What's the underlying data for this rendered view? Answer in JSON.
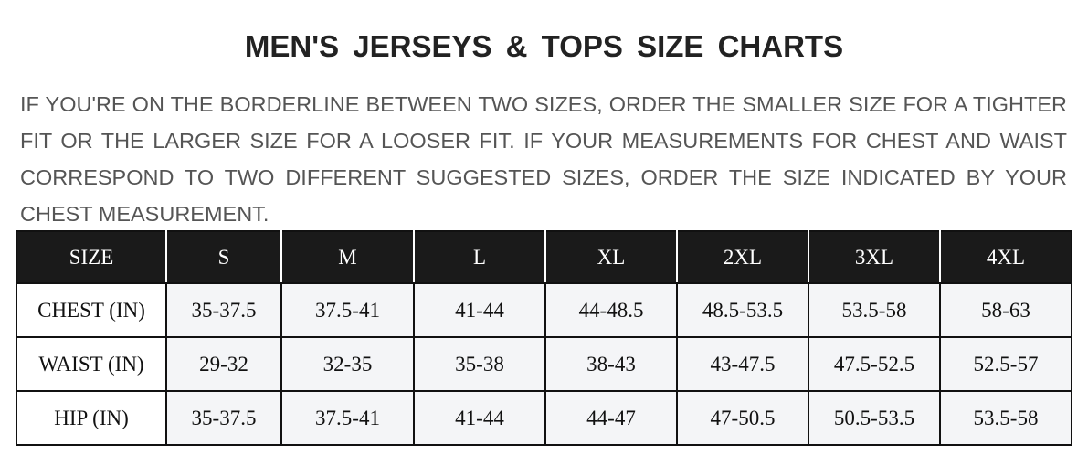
{
  "title": "MEN'S JERSEYS & TOPS SIZE CHARTS",
  "note": "IF YOU'RE ON THE BORDERLINE BETWEEN TWO SIZES, ORDER THE SMALLER SIZE FOR A TIGHTER FIT OR THE LARGER SIZE FOR A LOOSER FIT. IF YOUR MEASUREMENTS FOR CHEST AND WAIST CORRESPOND TO TWO DIFFERENT SUGGESTED SIZES, ORDER THE SIZE INDICATED BY YOUR CHEST MEASUREMENT.",
  "table": {
    "headers": [
      "SIZE",
      "S",
      "M",
      "L",
      "XL",
      "2XL",
      "3XL",
      "4XL"
    ],
    "rows": [
      [
        "CHEST (IN)",
        "35-37.5",
        "37.5-41",
        "41-44",
        "44-48.5",
        "48.5-53.5",
        "53.5-58",
        "58-63"
      ],
      [
        "WAIST (IN)",
        "29-32",
        "32-35",
        "35-38",
        "38-43",
        "43-47.5",
        "47.5-52.5",
        "52.5-57"
      ],
      [
        "HIP (IN)",
        "35-37.5",
        "37.5-41",
        "41-44",
        "44-47",
        "47-50.5",
        "50.5-53.5",
        "53.5-58"
      ]
    ]
  },
  "colors": {
    "header_bg": "#1a1a1a",
    "cell_bg": "#f4f5f7",
    "note_text": "#555555"
  }
}
